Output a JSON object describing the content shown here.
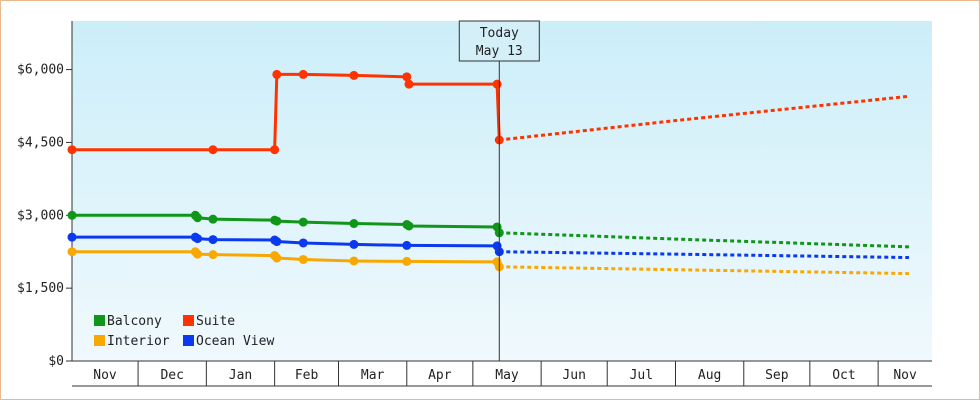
{
  "chart_data": {
    "type": "line",
    "y_ticks": [
      "$0",
      "$1,500",
      "$3,000",
      "$4,500",
      "$6,000"
    ],
    "y_tick_values": [
      0,
      1500,
      3000,
      4500,
      6000
    ],
    "ylim": [
      0,
      7000
    ],
    "months": [
      "Nov",
      "Dec",
      "Jan",
      "Feb",
      "Mar",
      "Apr",
      "May",
      "Jun",
      "Jul",
      "Aug",
      "Sep",
      "Oct",
      "Nov"
    ],
    "today": {
      "line1": "Today",
      "line2": "May 13"
    },
    "legend_placement": "bottom-left",
    "grid": false,
    "series": [
      {
        "name": "Balcony",
        "color": "#109618",
        "actual": [
          [
            "2023-11-01",
            3000
          ],
          [
            "2023-12-27",
            3000
          ],
          [
            "2023-12-28",
            2950
          ],
          [
            "2024-01-04",
            2920
          ],
          [
            "2024-02-01",
            2900
          ],
          [
            "2024-02-02",
            2880
          ],
          [
            "2024-02-14",
            2860
          ],
          [
            "2024-03-08",
            2830
          ],
          [
            "2024-04-01",
            2810
          ],
          [
            "2024-04-02",
            2780
          ],
          [
            "2024-05-12",
            2760
          ],
          [
            "2024-05-13",
            2640
          ]
        ],
        "forecast": [
          [
            "2024-05-13",
            2640
          ],
          [
            "2024-08-01",
            2510
          ],
          [
            "2024-11-15",
            2350
          ]
        ]
      },
      {
        "name": "Suite",
        "color": "#ff3300",
        "actual": [
          [
            "2023-11-01",
            4350
          ],
          [
            "2024-01-04",
            4350
          ],
          [
            "2024-02-01",
            4350
          ],
          [
            "2024-02-02",
            5900
          ],
          [
            "2024-02-14",
            5900
          ],
          [
            "2024-03-08",
            5880
          ],
          [
            "2024-04-01",
            5850
          ],
          [
            "2024-04-02",
            5700
          ],
          [
            "2024-05-12",
            5700
          ],
          [
            "2024-05-13",
            4550
          ]
        ],
        "forecast": [
          [
            "2024-05-13",
            4550
          ],
          [
            "2024-08-01",
            4950
          ],
          [
            "2024-11-15",
            5450
          ]
        ]
      },
      {
        "name": "Interior",
        "color": "#f8a800",
        "actual": [
          [
            "2023-11-01",
            2250
          ],
          [
            "2023-12-27",
            2250
          ],
          [
            "2023-12-28",
            2200
          ],
          [
            "2024-01-04",
            2190
          ],
          [
            "2024-02-01",
            2170
          ],
          [
            "2024-02-02",
            2120
          ],
          [
            "2024-02-14",
            2090
          ],
          [
            "2024-03-08",
            2060
          ],
          [
            "2024-04-01",
            2050
          ],
          [
            "2024-05-12",
            2040
          ],
          [
            "2024-05-13",
            1940
          ]
        ],
        "forecast": [
          [
            "2024-05-13",
            1940
          ],
          [
            "2024-08-01",
            1880
          ],
          [
            "2024-11-15",
            1800
          ]
        ]
      },
      {
        "name": "Ocean View",
        "color": "#0b39f0",
        "actual": [
          [
            "2023-11-01",
            2550
          ],
          [
            "2023-12-27",
            2550
          ],
          [
            "2023-12-28",
            2520
          ],
          [
            "2024-01-04",
            2500
          ],
          [
            "2024-02-01",
            2490
          ],
          [
            "2024-02-02",
            2460
          ],
          [
            "2024-02-14",
            2430
          ],
          [
            "2024-03-08",
            2400
          ],
          [
            "2024-04-01",
            2380
          ],
          [
            "2024-05-12",
            2370
          ],
          [
            "2024-05-13",
            2250
          ]
        ],
        "forecast": [
          [
            "2024-05-13",
            2250
          ],
          [
            "2024-08-01",
            2200
          ],
          [
            "2024-11-15",
            2130
          ]
        ]
      }
    ]
  }
}
